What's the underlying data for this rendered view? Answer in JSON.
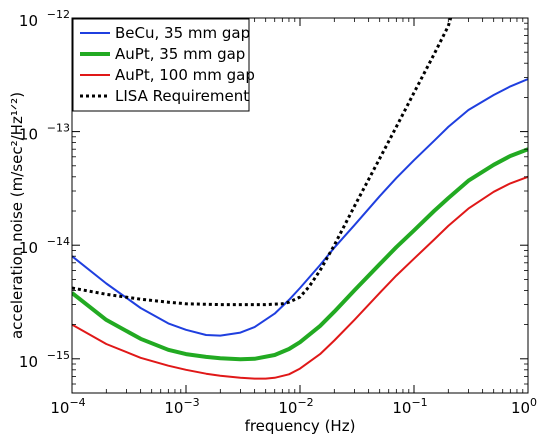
{
  "chart_data": {
    "type": "line",
    "title": "",
    "xlabel": "frequency (Hz)",
    "ylabel": "acceleration noise (m/sec²/Hz¹ᐟ²)",
    "xscale": "log",
    "yscale": "log",
    "xlim": [
      0.0001,
      1
    ],
    "ylim": [
      5e-16,
      1e-12
    ],
    "grid": false,
    "legend_position": "top-left",
    "x_ticks": [
      {
        "value": 0.0001,
        "base": "10",
        "exp": "−4"
      },
      {
        "value": 0.001,
        "base": "10",
        "exp": "−3"
      },
      {
        "value": 0.01,
        "base": "10",
        "exp": "−2"
      },
      {
        "value": 0.1,
        "base": "10",
        "exp": "−1"
      },
      {
        "value": 1,
        "base": "10",
        "exp": "0"
      }
    ],
    "y_ticks": [
      {
        "value": 1e-15,
        "base": "10",
        "exp": "−15"
      },
      {
        "value": 1e-14,
        "base": "10",
        "exp": "−14"
      },
      {
        "value": 1e-13,
        "base": "10",
        "exp": "−13"
      },
      {
        "value": 1e-12,
        "base": "10",
        "exp": "−12"
      }
    ],
    "series": [
      {
        "name": "BeCu, 35 mm gap",
        "color": "#1f3fdf",
        "style": "solid",
        "width": 2,
        "x": [
          0.0001,
          0.0002,
          0.0004,
          0.0007,
          0.001,
          0.0015,
          0.002,
          0.003,
          0.004,
          0.006,
          0.008,
          0.01,
          0.015,
          0.02,
          0.03,
          0.05,
          0.07,
          0.1,
          0.15,
          0.2,
          0.3,
          0.5,
          0.7,
          1.0
        ],
        "y": [
          8e-15,
          4.6e-15,
          2.8e-15,
          2.05e-15,
          1.8e-15,
          1.62e-15,
          1.6e-15,
          1.7e-15,
          1.9e-15,
          2.5e-15,
          3.3e-15,
          4.2e-15,
          6.7e-15,
          9.5e-15,
          1.5e-14,
          2.7e-14,
          3.9e-14,
          5.6e-14,
          8.3e-14,
          1.1e-13,
          1.55e-13,
          2.1e-13,
          2.5e-13,
          2.9e-13
        ]
      },
      {
        "name": "AuPt, 35 mm gap",
        "color": "#22aa22",
        "style": "solid",
        "width": 4,
        "x": [
          0.0001,
          0.0002,
          0.0004,
          0.0007,
          0.001,
          0.0015,
          0.002,
          0.003,
          0.004,
          0.006,
          0.008,
          0.01,
          0.015,
          0.02,
          0.03,
          0.05,
          0.07,
          0.1,
          0.15,
          0.2,
          0.3,
          0.5,
          0.7,
          1.0
        ],
        "y": [
          3.8e-15,
          2.2e-15,
          1.5e-15,
          1.2e-15,
          1.1e-15,
          1.04e-15,
          1.01e-15,
          9.9e-16,
          1e-15,
          1.08e-15,
          1.22e-15,
          1.4e-15,
          1.95e-15,
          2.6e-15,
          4e-15,
          6.8e-15,
          9.6e-15,
          1.35e-14,
          2e-14,
          2.6e-14,
          3.7e-14,
          5.1e-14,
          6.1e-14,
          7e-14
        ]
      },
      {
        "name": "AuPt, 100 mm gap",
        "color": "#e01818",
        "style": "solid",
        "width": 2,
        "x": [
          0.0001,
          0.0002,
          0.0004,
          0.0007,
          0.001,
          0.0015,
          0.002,
          0.003,
          0.004,
          0.005,
          0.006,
          0.008,
          0.01,
          0.015,
          0.02,
          0.03,
          0.05,
          0.07,
          0.1,
          0.15,
          0.2,
          0.3,
          0.5,
          0.7,
          1.0
        ],
        "y": [
          2e-15,
          1.35e-15,
          1.02e-15,
          8.7e-16,
          8e-16,
          7.4e-16,
          7.1e-16,
          6.8e-16,
          6.7e-16,
          6.7e-16,
          6.8e-16,
          7.3e-16,
          8.2e-16,
          1.1e-15,
          1.45e-15,
          2.2e-15,
          3.8e-15,
          5.4e-15,
          7.6e-15,
          1.12e-14,
          1.48e-14,
          2.1e-14,
          2.95e-14,
          3.5e-14,
          4e-14
        ]
      },
      {
        "name": "LISA Requirement",
        "color": "#000000",
        "style": "dotted",
        "width": 3,
        "x": [
          0.0001,
          0.0002,
          0.0004,
          0.0007,
          0.001,
          0.002,
          0.003,
          0.005,
          0.007,
          0.008,
          0.01,
          0.012,
          0.015,
          0.02,
          0.03,
          0.05,
          0.07,
          0.1,
          0.15,
          0.2,
          0.21
        ],
        "y": [
          4.2e-15,
          3.7e-15,
          3.35e-15,
          3.15e-15,
          3.05e-15,
          3e-15,
          3e-15,
          3e-15,
          3.05e-15,
          3.15e-15,
          3.5e-15,
          4.3e-15,
          6e-15,
          1e-14,
          2.2e-14,
          5.8e-14,
          1.1e-13,
          2.2e-13,
          4.8e-13,
          8.5e-13,
          1e-12
        ]
      }
    ]
  }
}
